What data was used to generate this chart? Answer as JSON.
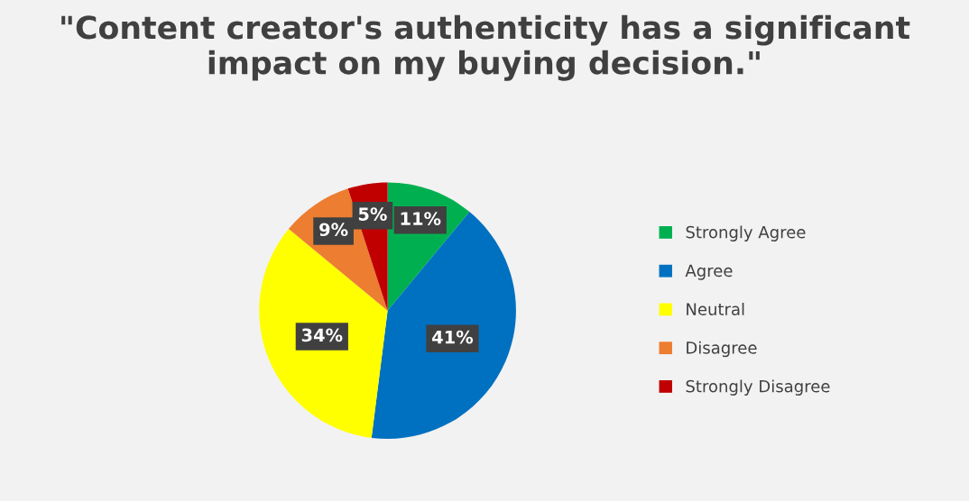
{
  "chart_data": {
    "type": "pie",
    "title": "\"Content creator's authenticity has a significant impact on my buying decision.\"",
    "categories": [
      "Strongly Agree",
      "Agree",
      "Neutral",
      "Disagree",
      "Strongly Disagree"
    ],
    "values": [
      11,
      41,
      34,
      9,
      5
    ],
    "colors": [
      "#00b050",
      "#0070c0",
      "#ffff00",
      "#ed7d31",
      "#c00000"
    ],
    "value_labels": [
      "11%",
      "41%",
      "34%",
      "9%",
      "5%"
    ],
    "legend": "right"
  }
}
